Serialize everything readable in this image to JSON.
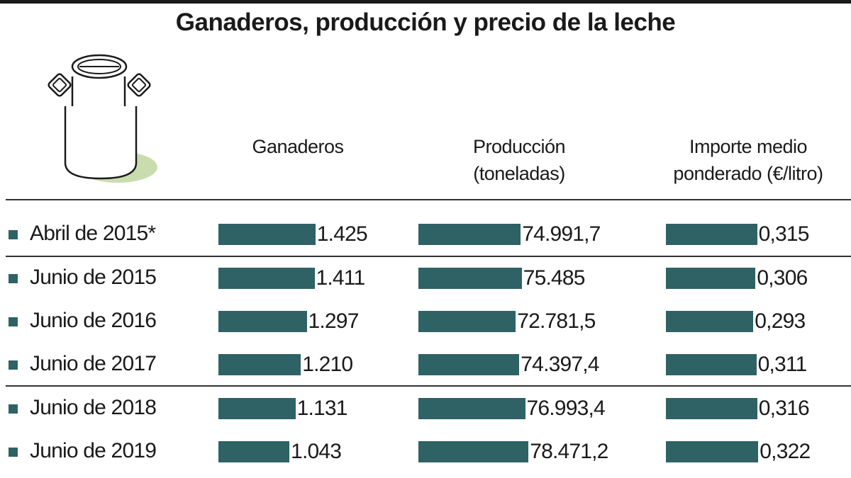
{
  "title": "Ganaderos, producción y precio de la leche",
  "colors": {
    "bar": "#2e6265",
    "shadow": "#c9dcae"
  },
  "icon": "milk-can-icon",
  "chart_data": {
    "type": "bar",
    "orientation": "horizontal",
    "title": "Ganaderos, producción y precio de la leche",
    "categories": [
      "Abril de 2015*",
      "Junio de 2015",
      "Junio de 2016",
      "Junio de 2017",
      "Junio de 2018",
      "Junio de 2019"
    ],
    "series": [
      {
        "name": "Ganaderos",
        "name_lines": [
          "Ganaderos"
        ],
        "values": [
          1425,
          1411,
          1297,
          1210,
          1131,
          1043
        ],
        "labels": [
          "1.425",
          "1.411",
          "1.297",
          "1.210",
          "1.131",
          "1.043"
        ]
      },
      {
        "name": "Producción (toneladas)",
        "name_lines": [
          "Producción",
          "(toneladas)"
        ],
        "values": [
          74991.7,
          75485,
          72781.5,
          74397.4,
          76993.4,
          78471.2
        ],
        "labels": [
          "74.991,7",
          "75.485",
          "72.781,5",
          "74.397,4",
          "76.993,4",
          "78.471,2"
        ]
      },
      {
        "name": "Importe medio ponderado (€/litro)",
        "name_lines": [
          "Importe medio",
          "ponderado (€/litro)"
        ],
        "values": [
          0.315,
          0.306,
          0.293,
          0.311,
          0.316,
          0.322
        ],
        "labels": [
          "0,315",
          "0,306",
          "0,293",
          "0,311",
          "0,316",
          "0,322"
        ]
      }
    ]
  }
}
